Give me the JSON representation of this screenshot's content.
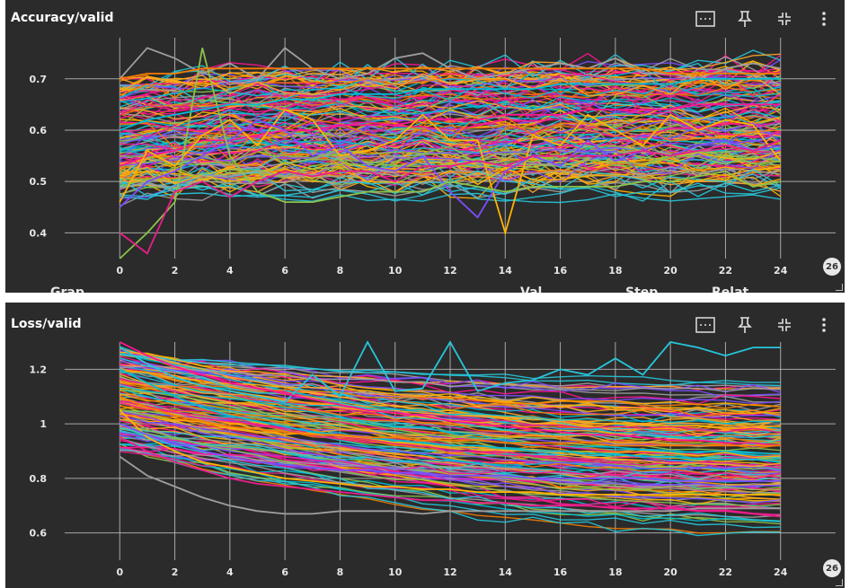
{
  "palette": [
    "#ff1493",
    "#e91e8c",
    "#ffb300",
    "#f57c00",
    "#00bcd4",
    "#9e9e9e",
    "#7c4dff",
    "#8bc34a",
    "#26c6da",
    "#ffa726"
  ],
  "charts": [
    {
      "title": "Accuracy/valid",
      "step_badge": "26",
      "cut_text": [
        "Grap",
        "Val",
        "Step",
        "Relat"
      ],
      "toolbar": {
        "fit": "fit-domain-icon",
        "pin": "pin-icon",
        "collapse": "collapse-icon",
        "more": "more-vert-icon"
      }
    },
    {
      "title": "Loss/valid",
      "step_badge": "26",
      "toolbar": {
        "fit": "fit-domain-icon",
        "pin": "pin-icon",
        "collapse": "collapse-icon",
        "more": "more-vert-icon"
      }
    }
  ],
  "chart_data": [
    {
      "type": "line",
      "title": "Accuracy/valid",
      "xlabel": "",
      "ylabel": "",
      "xlim": [
        -2,
        26
      ],
      "ylim": [
        0.35,
        0.78
      ],
      "x_ticks": [
        0,
        2,
        4,
        6,
        8,
        10,
        12,
        14,
        16,
        18,
        20,
        22,
        24
      ],
      "y_ticks": [
        0.4,
        0.5,
        0.6,
        0.7
      ],
      "y_tick_labels": [
        "0.4",
        "0.5",
        "0.6",
        "0.7"
      ],
      "grid": true,
      "series_count": 140,
      "x": [
        0,
        1,
        2,
        3,
        4,
        5,
        6,
        7,
        8,
        9,
        10,
        11,
        12,
        13,
        14,
        15,
        16,
        17,
        18,
        19,
        20,
        21,
        22,
        23,
        24
      ],
      "series": [
        {
          "color": "#ff1493",
          "values": [
            0.53,
            0.55,
            0.56,
            0.58,
            0.58,
            0.59,
            0.6,
            0.6,
            0.61,
            0.61,
            0.61,
            0.62,
            0.62,
            0.62,
            0.63,
            0.63,
            0.63,
            0.64,
            0.64,
            0.64,
            0.64,
            0.65,
            0.65,
            0.65,
            0.65
          ]
        },
        {
          "color": "#ffb300",
          "values": [
            0.46,
            0.56,
            0.53,
            0.59,
            0.62,
            0.57,
            0.64,
            0.62,
            0.55,
            0.56,
            0.58,
            0.63,
            0.58,
            0.58,
            0.4,
            0.59,
            0.57,
            0.63,
            0.6,
            0.57,
            0.63,
            0.6,
            0.62,
            0.61,
            0.54
          ]
        },
        {
          "color": "#9e9e9e",
          "values": [
            0.7,
            0.76,
            0.74,
            0.71,
            0.73,
            0.7,
            0.76,
            0.72,
            0.7,
            0.71,
            0.74,
            0.75,
            0.72,
            0.7,
            0.71,
            0.72,
            0.73,
            0.72,
            0.74,
            0.71,
            0.71,
            0.7,
            0.72,
            0.73,
            0.72
          ]
        },
        {
          "color": "#7c4dff",
          "values": [
            0.45,
            0.5,
            0.52,
            0.55,
            0.58,
            0.62,
            0.6,
            0.55,
            0.57,
            0.53,
            0.52,
            0.55,
            0.48,
            0.43,
            0.52,
            0.55,
            0.53,
            0.58,
            0.54,
            0.56,
            0.55,
            0.57,
            0.58,
            0.56,
            0.57
          ]
        },
        {
          "color": "#8bc34a",
          "values": [
            0.3,
            0.4,
            0.46,
            0.76,
            0.55,
            0.48,
            0.46,
            0.46,
            0.47,
            0.48,
            0.48,
            0.48,
            0.5,
            0.49,
            0.48,
            0.49,
            0.49,
            0.49,
            0.49,
            0.5,
            0.5,
            0.51,
            0.52,
            0.49,
            0.5
          ]
        },
        {
          "color": "#00bcd4",
          "values": [
            0.6,
            0.62,
            0.63,
            0.64,
            0.65,
            0.65,
            0.66,
            0.66,
            0.67,
            0.67,
            0.67,
            0.68,
            0.68,
            0.68,
            0.68,
            0.68,
            0.69,
            0.69,
            0.69,
            0.69,
            0.69,
            0.7,
            0.7,
            0.7,
            0.7
          ]
        },
        {
          "color": "#f57c00",
          "values": [
            0.7,
            0.71,
            0.71,
            0.72,
            0.72,
            0.72,
            0.72,
            0.72,
            0.72,
            0.72,
            0.72,
            0.72,
            0.72,
            0.72,
            0.72,
            0.72,
            0.72,
            0.72,
            0.72,
            0.72,
            0.71,
            0.71,
            0.71,
            0.71,
            0.71
          ]
        },
        {
          "color": "#e91e8c",
          "values": [
            0.4,
            0.36,
            0.48,
            0.5,
            0.47,
            0.5,
            0.52,
            0.51,
            0.52,
            0.52,
            0.5,
            0.53,
            0.53,
            0.54,
            0.53,
            0.55,
            0.55,
            0.55,
            0.55,
            0.56,
            0.55,
            0.56,
            0.57,
            0.56,
            0.58
          ]
        }
      ]
    },
    {
      "type": "line",
      "title": "Loss/valid",
      "xlabel": "",
      "ylabel": "",
      "xlim": [
        -2,
        26
      ],
      "ylim": [
        0.5,
        1.3
      ],
      "x_ticks": [
        0,
        2,
        4,
        6,
        8,
        10,
        12,
        14,
        16,
        18,
        20,
        22,
        24
      ],
      "y_ticks": [
        0.6,
        0.8,
        1.0,
        1.2
      ],
      "y_tick_labels": [
        "0.6",
        "0.8",
        "1",
        "1.2"
      ],
      "grid": true,
      "series_count": 140,
      "x": [
        0,
        1,
        2,
        3,
        4,
        5,
        6,
        7,
        8,
        9,
        10,
        11,
        12,
        13,
        14,
        15,
        16,
        17,
        18,
        19,
        20,
        21,
        22,
        23,
        24
      ],
      "series": [
        {
          "color": "#9e9e9e",
          "values": [
            0.88,
            0.81,
            0.77,
            0.73,
            0.7,
            0.68,
            0.67,
            0.67,
            0.68,
            0.68,
            0.68,
            0.67,
            0.68,
            0.68,
            0.68,
            0.68,
            0.68,
            0.68,
            0.68,
            0.68,
            0.68,
            0.69,
            0.69,
            0.69,
            0.69
          ]
        },
        {
          "color": "#26c6da",
          "values": [
            1.28,
            1.22,
            1.17,
            1.14,
            1.12,
            1.1,
            1.08,
            1.18,
            1.1,
            1.3,
            1.12,
            1.13,
            1.3,
            1.12,
            1.15,
            1.16,
            1.2,
            1.18,
            1.24,
            1.18,
            1.3,
            1.28,
            1.25,
            1.28,
            1.28
          ]
        },
        {
          "color": "#ff1493",
          "values": [
            1.3,
            1.25,
            1.21,
            1.18,
            1.15,
            1.13,
            1.11,
            1.09,
            1.07,
            1.05,
            1.04,
            1.03,
            1.01,
            1.0,
            0.99,
            0.98,
            0.97,
            0.96,
            0.96,
            0.95,
            0.94,
            0.94,
            0.93,
            0.93,
            0.92
          ]
        },
        {
          "color": "#ffb300",
          "values": [
            1.05,
            0.95,
            0.9,
            0.86,
            0.84,
            0.82,
            0.8,
            0.79,
            0.78,
            0.77,
            0.77,
            0.76,
            0.76,
            0.75,
            0.75,
            0.75,
            0.74,
            0.74,
            0.74,
            0.74,
            0.74,
            0.74,
            0.74,
            0.74,
            0.74
          ]
        },
        {
          "color": "#e91e8c",
          "values": [
            0.95,
            0.9,
            0.86,
            0.83,
            0.8,
            0.78,
            0.77,
            0.76,
            0.75,
            0.74,
            0.73,
            0.72,
            0.72,
            0.71,
            0.71,
            0.7,
            0.7,
            0.7,
            0.69,
            0.69,
            0.69,
            0.68,
            0.68,
            0.67,
            0.66
          ]
        },
        {
          "color": "#00bcd4",
          "values": [
            1.2,
            1.15,
            1.1,
            1.06,
            1.03,
            1.01,
            0.99,
            0.97,
            0.96,
            0.95,
            0.94,
            0.93,
            0.92,
            0.92,
            0.91,
            0.9,
            0.9,
            0.89,
            0.89,
            0.88,
            0.88,
            0.87,
            0.87,
            0.87,
            0.86
          ]
        },
        {
          "color": "#f57c00",
          "values": [
            1.1,
            1.06,
            1.03,
            1.01,
            0.99,
            0.98,
            0.97,
            0.96,
            0.96,
            0.95,
            0.95,
            0.94,
            0.94,
            0.94,
            0.93,
            0.93,
            0.93,
            0.93,
            0.92,
            0.92,
            0.92,
            0.92,
            0.92,
            0.92,
            0.92
          ]
        },
        {
          "color": "#7c4dff",
          "values": [
            1.0,
            0.96,
            0.93,
            0.9,
            0.88,
            0.86,
            0.85,
            0.84,
            0.83,
            0.83,
            0.82,
            0.82,
            0.81,
            0.81,
            0.81,
            0.8,
            0.8,
            0.8,
            0.8,
            0.8,
            0.79,
            0.79,
            0.79,
            0.79,
            0.79
          ]
        }
      ]
    }
  ]
}
